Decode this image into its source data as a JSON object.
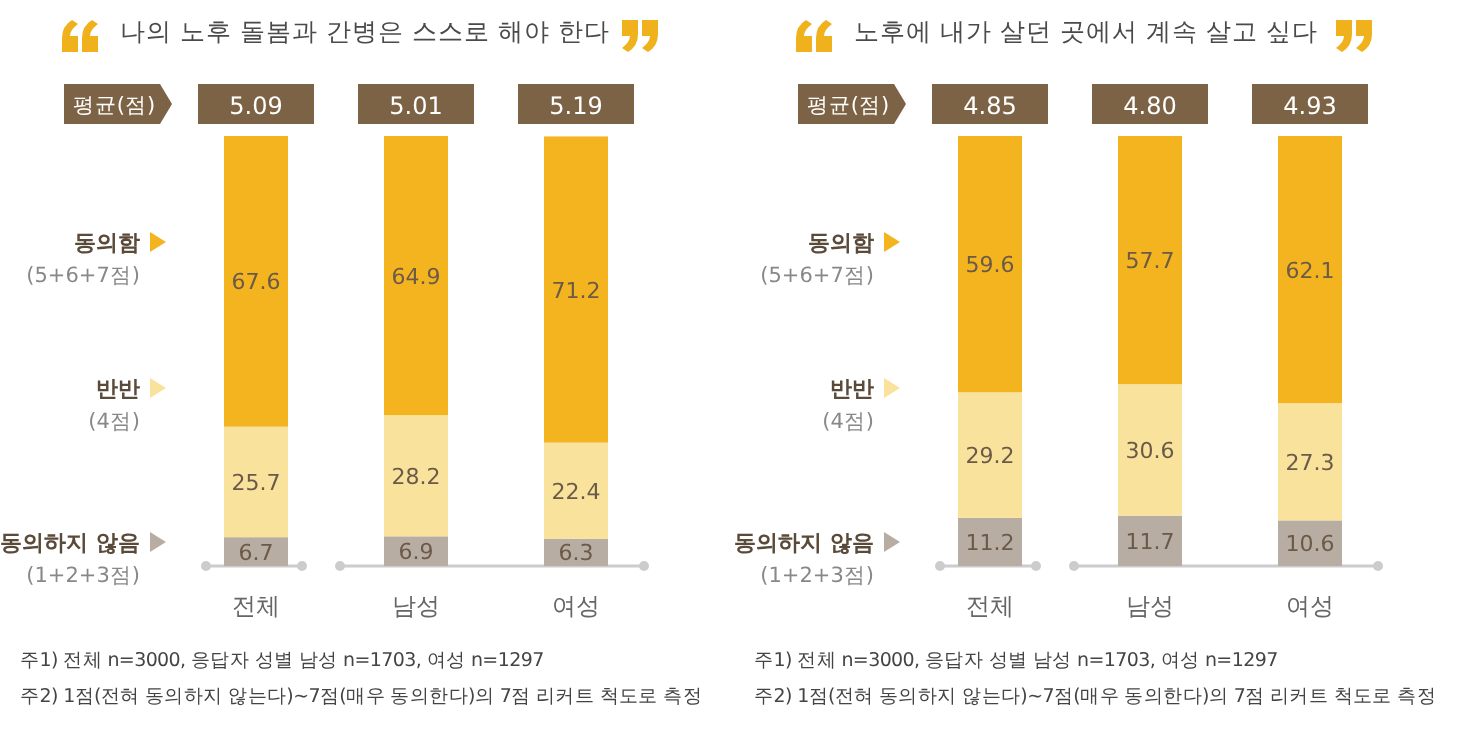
{
  "chart_data": [
    {
      "type": "bar",
      "title": "나의 노후 돌봄과 간병은 스스로 해야 한다",
      "categories": [
        "전체",
        "남성",
        "여성"
      ],
      "stacked": true,
      "data_labels": true,
      "legend": "left",
      "series": [
        {
          "name": "동의하지 않음\n(1+2+3점)",
          "color": "#b8ada2",
          "values": [
            6.7,
            6.9,
            6.3
          ]
        },
        {
          "name": "반반\n(4점)",
          "color": "#f9e29c",
          "values": [
            25.7,
            28.2,
            22.4
          ]
        },
        {
          "name": "동의함\n(5+6+7점)",
          "color": "#f3b41f",
          "values": [
            67.6,
            64.9,
            71.2
          ]
        }
      ],
      "annotations": [
        "평균(점)",
        "5.09",
        "5.01",
        "5.19",
        "주1) 전체 n=3000, 응답자 성별 남성 n=1703, 여성 n=1297",
        "주2) 1점(전혀 동의하지 않는다)~7점(매우 동의한다)의 7점 리커트 척도로 측정"
      ]
    },
    {
      "type": "bar",
      "title": "노후에 내가 살던 곳에서 계속 살고 싶다",
      "categories": [
        "전체",
        "남성",
        "여성"
      ],
      "stacked": true,
      "data_labels": true,
      "legend": "left",
      "series": [
        {
          "name": "동의하지 않음\n(1+2+3점)",
          "color": "#b8ada2",
          "values": [
            11.2,
            11.7,
            10.6
          ]
        },
        {
          "name": "반반\n(4점)",
          "color": "#f9e29c",
          "values": [
            29.2,
            30.6,
            27.3
          ]
        },
        {
          "name": "동의함\n(5+6+7점)",
          "color": "#f3b41f",
          "values": [
            59.6,
            57.7,
            62.1
          ]
        }
      ],
      "annotations": [
        "평균(점)",
        "4.85",
        "4.80",
        "4.93",
        "주1) 전체 n=3000, 응답자 성별 남성 n=1703, 여성 n=1297",
        "주2) 1점(전혀 동의하지 않는다)~7점(매우 동의한다)의 7점 리커트 척도로 측정"
      ]
    }
  ]
}
